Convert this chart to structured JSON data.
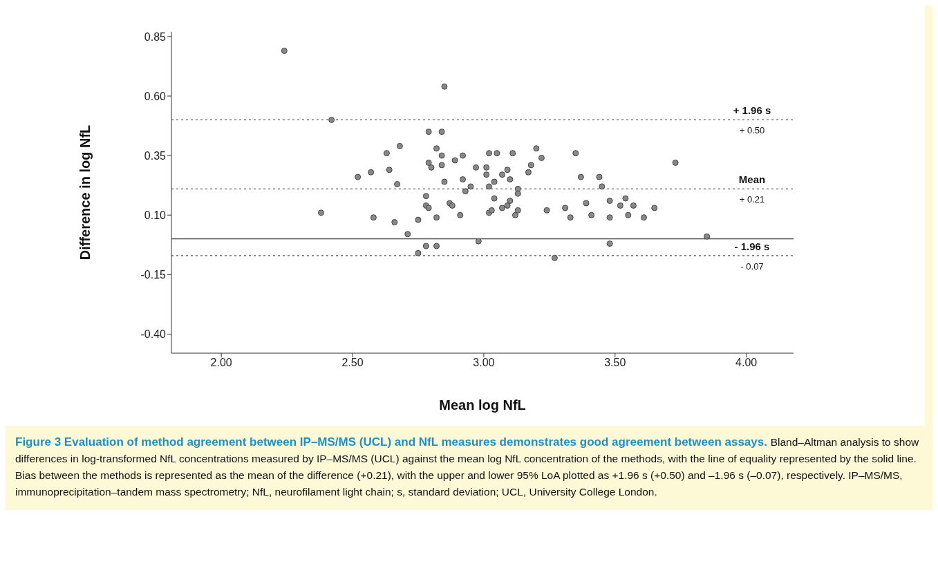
{
  "chart_data": {
    "type": "scatter",
    "title": "Figure 3 Evaluation of method agreement between IP–MS/MS (UCL) and NfL measures demonstrates good agreement between assays.",
    "annotations": [
      "Bland–Altman analysis to show differences in log-transformed NfL concentrations measured by IP–MS/MS (UCL) against the mean log NfL concentration of the methods, with the line of equality represented by the solid line. Bias between the methods is represented as the mean of the difference (+0.21), with the upper and lower 95% LoA plotted as +1.96 s (+0.50) and –1.96 s (–0.07), respectively. IP–MS/MS, immunoprecipitation–tandem mass spectrometry; NfL, neurofilament light chain; s, standard deviation; UCL, University College London.",
      {
        "text": "+ 0.50",
        "y": 0.5
      },
      {
        "text": "+ 0.21",
        "y": 0.21
      },
      {
        "text": "- 0.07",
        "y": -0.07
      }
    ],
    "xlabel": "Mean log NfL",
    "ylabel": "Difference in log NfL",
    "xlim": [
      1.81,
      4.18
    ],
    "xticks": [
      {
        "value": 2,
        "label": "2.00"
      },
      {
        "value": 2.5,
        "label": "2.50"
      },
      {
        "value": 3,
        "label": "3.00"
      },
      {
        "value": 3.5,
        "label": "3.50"
      },
      {
        "value": 4,
        "label": "4.00"
      }
    ],
    "ylim": [
      -0.48,
      0.87
    ],
    "yticks": [
      {
        "value": -0.4,
        "label": "-0.40"
      },
      {
        "value": -0.15,
        "label": "-0.15"
      },
      {
        "value": 0.1,
        "label": "0.10"
      },
      {
        "value": 0.35,
        "label": "0.35"
      },
      {
        "value": 0.6,
        "label": "0.60"
      },
      {
        "value": 0.85,
        "label": "0.85"
      }
    ],
    "marker": "circle",
    "color": "#888888",
    "ref_lines": [
      {
        "axis": "y",
        "value": 0.5,
        "label": "+ 1.96 s",
        "line_style": "dotted",
        "color": "#555555"
      },
      {
        "axis": "y",
        "value": 0.21,
        "label": "Mean",
        "line_style": "dotted",
        "color": "#555555"
      },
      {
        "axis": "y",
        "value": -0.07,
        "label": "- 1.96 s",
        "line_style": "dotted",
        "color": "#555555"
      },
      {
        "axis": "y",
        "value": 0,
        "line_style": "solid",
        "color": "#333333"
      }
    ],
    "x": [
      2.24,
      2.42,
      2.85,
      2.38,
      2.79,
      2.84,
      2.68,
      2.63,
      2.82,
      2.84,
      2.92,
      2.89,
      2.79,
      2.8,
      2.84,
      2.97,
      3.01,
      3.01,
      3.02,
      3.05,
      3.11,
      2.57,
      2.64,
      2.52,
      2.67,
      2.85,
      2.92,
      2.95,
      2.93,
      3.02,
      3.04,
      3.07,
      3.09,
      3.1,
      3.04,
      3.1,
      2.78,
      2.78,
      2.79,
      2.87,
      2.88,
      2.82,
      2.91,
      3.02,
      3.03,
      3.07,
      3.09,
      3.12,
      2.58,
      2.66,
      2.75,
      2.71,
      2.78,
      2.82,
      2.75,
      2.98,
      3.13,
      3.13,
      3.13,
      3.2,
      3.22,
      3.18,
      3.17,
      3.24,
      3.27,
      3.35,
      3.37,
      3.31,
      3.33,
      3.39,
      3.41,
      3.44,
      3.45,
      3.48,
      3.48,
      3.48,
      3.52,
      3.54,
      3.55,
      3.57,
      3.61,
      3.65,
      3.73,
      3.85
    ],
    "values": [
      0.79,
      0.5,
      0.64,
      0.11,
      0.45,
      0.45,
      0.39,
      0.36,
      0.38,
      0.35,
      0.35,
      0.33,
      0.32,
      0.3,
      0.31,
      0.3,
      0.3,
      0.27,
      0.36,
      0.36,
      0.36,
      0.28,
      0.29,
      0.26,
      0.23,
      0.24,
      0.25,
      0.22,
      0.2,
      0.22,
      0.24,
      0.27,
      0.29,
      0.25,
      0.17,
      0.16,
      0.18,
      0.14,
      0.13,
      0.15,
      0.14,
      0.09,
      0.1,
      0.11,
      0.12,
      0.13,
      0.14,
      0.1,
      0.09,
      0.07,
      0.08,
      0.02,
      -0.03,
      -0.03,
      -0.06,
      -0.01,
      0.21,
      0.19,
      0.12,
      0.38,
      0.34,
      0.31,
      0.28,
      0.12,
      -0.08,
      0.36,
      0.26,
      0.13,
      0.09,
      0.15,
      0.1,
      0.26,
      0.22,
      0.16,
      0.09,
      -0.02,
      0.14,
      0.17,
      0.1,
      0.14,
      0.09,
      0.13,
      0.32,
      0.01
    ]
  }
}
